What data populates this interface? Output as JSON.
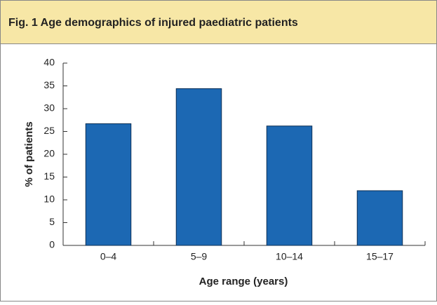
{
  "chart_data": {
    "type": "bar",
    "title": "Fig. 1 Age demographics of injured paediatric patients",
    "categories": [
      "0–4",
      "5–9",
      "10–14",
      "15–17"
    ],
    "values": [
      26.7,
      34.4,
      26.2,
      12.0
    ],
    "color": "#1c68b3",
    "xlabel": "Age range (years)",
    "ylabel": "% of patients",
    "ylim": [
      0,
      40
    ],
    "yticks": [
      0,
      5,
      10,
      15,
      20,
      25,
      30,
      35,
      40
    ]
  }
}
